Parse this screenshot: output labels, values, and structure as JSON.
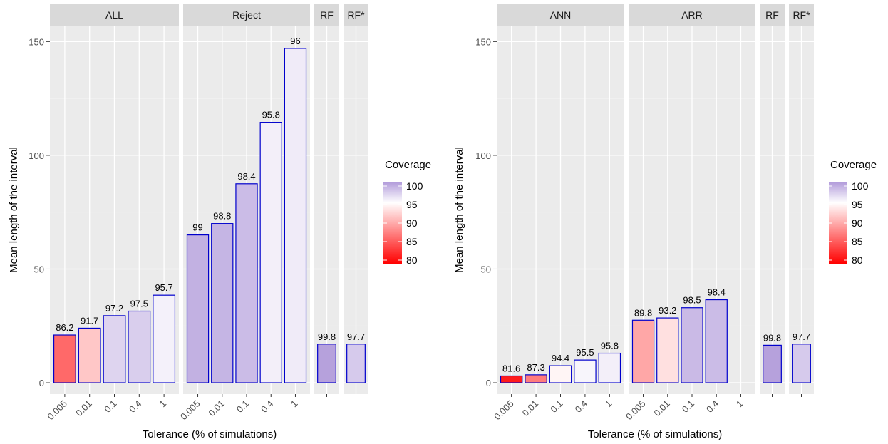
{
  "chart_data": [
    {
      "type": "bar",
      "ylabel": "Mean length of the interval",
      "xlabel": "Tolerance (% of simulations)",
      "ylim": [
        -5,
        157
      ],
      "yticks": [
        0,
        50,
        100,
        150
      ],
      "grid": true,
      "legend_position": "right",
      "color_scale": {
        "title": "Coverage",
        "breaks": [
          100,
          95,
          90,
          85,
          80
        ],
        "low": 80,
        "mid": 95,
        "high": 100,
        "low_color": "#ff0000",
        "mid_color": "#ffffff",
        "high_color": "#b39ddb"
      },
      "bar_outline_color": "#0000cc",
      "facets": [
        {
          "label": "ALL",
          "categories": [
            "0.005",
            "0.01",
            "0.1",
            "0.4",
            "1"
          ],
          "values": [
            21,
            24,
            29.5,
            31.5,
            38.5
          ],
          "coverage": [
            86.2,
            91.7,
            97.2,
            97.5,
            95.7
          ],
          "labels": [
            "86.2",
            "91.7",
            "97.2",
            "97.5",
            "95.7"
          ]
        },
        {
          "label": "Reject",
          "categories": [
            "0.005",
            "0.01",
            "0.1",
            "0.4",
            "1"
          ],
          "values": [
            65,
            70,
            87.5,
            114.5,
            147
          ],
          "coverage": [
            99,
            98.8,
            98.4,
            95.8,
            96
          ],
          "labels": [
            "99",
            "98.8",
            "98.4",
            "95.8",
            "96"
          ]
        },
        {
          "label": "RF",
          "categories": [
            ""
          ],
          "values": [
            17
          ],
          "coverage": [
            99.8
          ],
          "labels": [
            "99.8"
          ]
        },
        {
          "label": "RF*",
          "categories": [
            ""
          ],
          "values": [
            17
          ],
          "coverage": [
            97.7
          ],
          "labels": [
            "97.7"
          ]
        }
      ]
    },
    {
      "type": "bar",
      "ylabel": "Mean length of the interval",
      "xlabel": "Tolerance (% of simulations)",
      "ylim": [
        -5,
        157
      ],
      "yticks": [
        0,
        50,
        100,
        150
      ],
      "grid": true,
      "legend_position": "right",
      "color_scale": {
        "title": "Coverage",
        "breaks": [
          100,
          95,
          90,
          85,
          80
        ],
        "low": 80,
        "mid": 95,
        "high": 100,
        "low_color": "#ff0000",
        "mid_color": "#ffffff",
        "high_color": "#b39ddb"
      },
      "bar_outline_color": "#0000cc",
      "facets": [
        {
          "label": "ANN",
          "categories": [
            "0.005",
            "0.01",
            "0.1",
            "0.4",
            "1"
          ],
          "values": [
            3,
            3.5,
            7.5,
            10,
            13
          ],
          "coverage": [
            81.6,
            87.3,
            94.4,
            95.5,
            95.8
          ],
          "labels": [
            "81.6",
            "87.3",
            "94.4",
            "95.5",
            "95.8"
          ]
        },
        {
          "label": "ARR",
          "categories": [
            "0.005",
            "0.01",
            "0.1",
            "0.4",
            "1"
          ],
          "values": [
            27.5,
            28.5,
            33,
            36.5,
            null
          ],
          "coverage": [
            89.8,
            93.2,
            98.5,
            98.4,
            null
          ],
          "labels": [
            "89.8",
            "93.2",
            "98.5",
            "98.4",
            ""
          ]
        },
        {
          "label": "RF",
          "categories": [
            ""
          ],
          "values": [
            16.5
          ],
          "coverage": [
            99.8
          ],
          "labels": [
            "99.8"
          ]
        },
        {
          "label": "RF*",
          "categories": [
            ""
          ],
          "values": [
            17
          ],
          "coverage": [
            97.7
          ],
          "labels": [
            "97.7"
          ]
        }
      ]
    }
  ]
}
